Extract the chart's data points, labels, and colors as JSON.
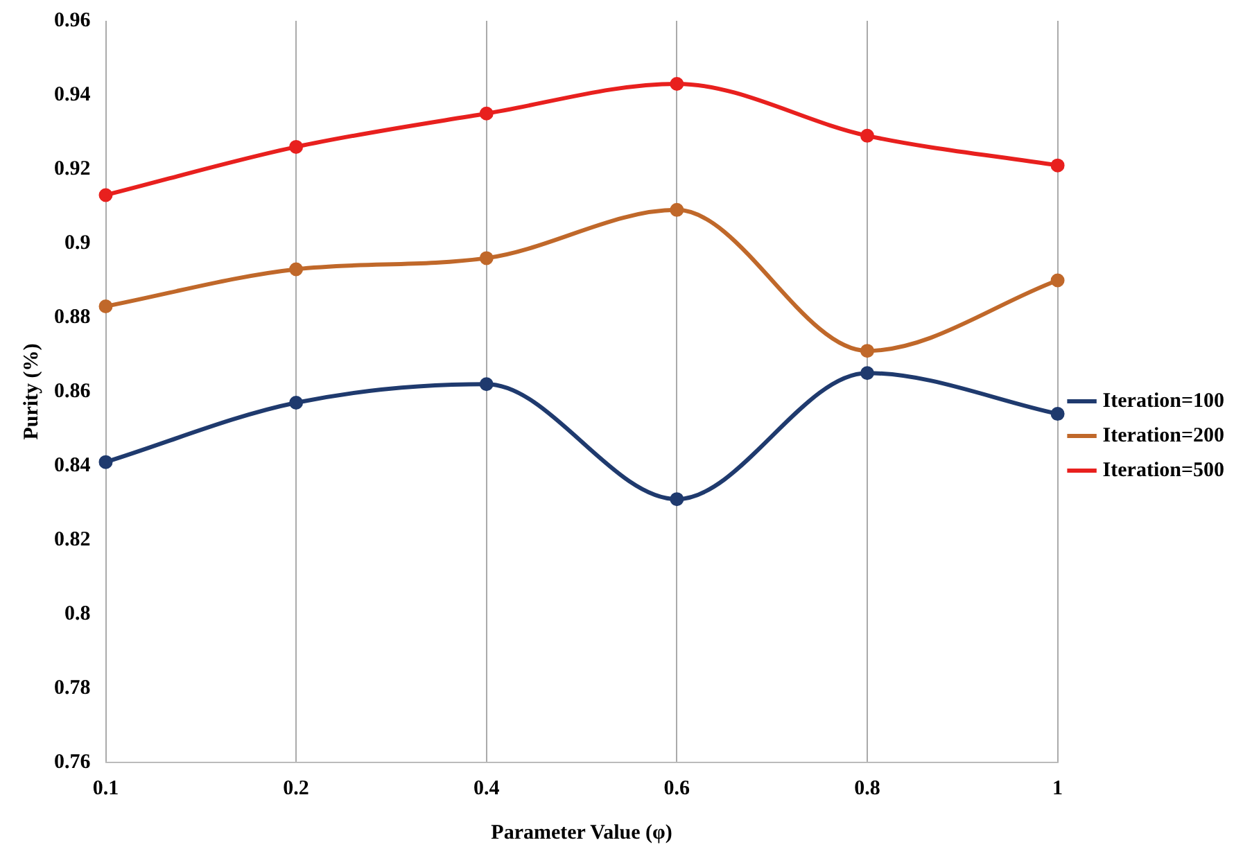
{
  "chart_data": {
    "type": "line",
    "xlabel": "Parameter Value (φ)",
    "ylabel": "Purity (%)",
    "categories": [
      "0.1",
      "0.2",
      "0.4",
      "0.6",
      "0.8",
      "1"
    ],
    "series": [
      {
        "name": "Iteration=100",
        "color": "#1f3a6e",
        "values": [
          0.841,
          0.857,
          0.862,
          0.831,
          0.865,
          0.854
        ]
      },
      {
        "name": "Iteration=200",
        "color": "#c0682a",
        "values": [
          0.883,
          0.893,
          0.896,
          0.909,
          0.871,
          0.89
        ]
      },
      {
        "name": "Iteration=500",
        "color": "#e8201e",
        "values": [
          0.913,
          0.926,
          0.935,
          0.943,
          0.929,
          0.921
        ]
      }
    ],
    "ylim": [
      0.76,
      0.96
    ],
    "yticks": [
      0.76,
      0.78,
      0.8,
      0.82,
      0.84,
      0.86,
      0.88,
      0.9,
      0.92,
      0.94,
      0.96
    ],
    "grid": "x",
    "legend": "right",
    "marker": "circle",
    "line_style": "solid"
  }
}
